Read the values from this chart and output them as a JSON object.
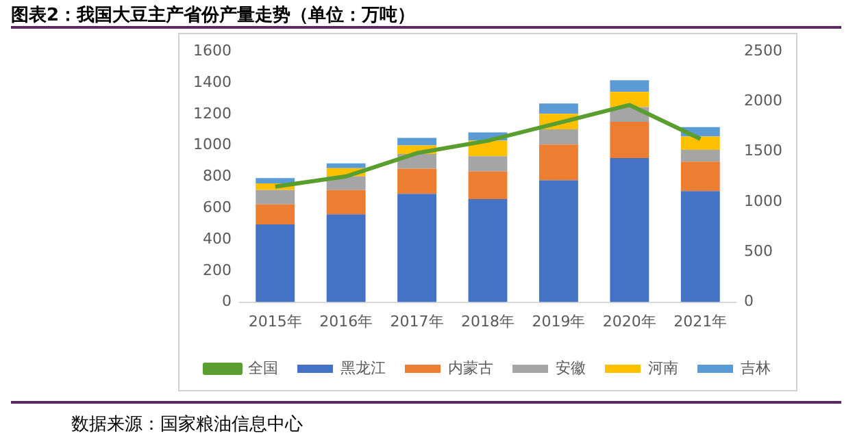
{
  "chart_data": {
    "type": "bar",
    "title": "图表2：我国大豆主产省份产量走势（单位：万吨）",
    "stacked": true,
    "categories": [
      "2015年",
      "2016年",
      "2017年",
      "2018年",
      "2019年",
      "2020年",
      "2021年"
    ],
    "series": [
      {
        "name": "黑龙江",
        "color": "#4472c4",
        "values": [
          496,
          561,
          692,
          658,
          778,
          920,
          709
        ]
      },
      {
        "name": "内蒙古",
        "color": "#ed7d31",
        "values": [
          128,
          154,
          160,
          177,
          228,
          231,
          188
        ]
      },
      {
        "name": "安徽",
        "color": "#a5a5a5",
        "values": [
          91,
          88,
          94,
          97,
          97,
          94,
          75
        ]
      },
      {
        "name": "河南",
        "color": "#ffc000",
        "values": [
          43,
          52,
          54,
          99,
          99,
          97,
          85
        ]
      },
      {
        "name": "吉林",
        "color": "#5b9bd5",
        "values": [
          34,
          31,
          48,
          52,
          66,
          74,
          60
        ]
      },
      {
        "name": "全国",
        "type": "line",
        "axis": "y2",
        "color": "#5a9e2f",
        "values": [
          1152,
          1254,
          1486,
          1610,
          1788,
          1966,
          1628
        ]
      }
    ],
    "ylim": [
      0,
      1600
    ],
    "yticks": [
      0,
      200,
      400,
      600,
      800,
      1000,
      1200,
      1400,
      1600
    ],
    "y2lim": [
      0,
      2500
    ],
    "y2ticks": [
      0,
      500,
      1000,
      1500,
      2000,
      2500
    ],
    "grid": false,
    "legend": "bottom",
    "marker": "none",
    "annotations": [
      "数据来源：国家粮油信息中心"
    ]
  }
}
